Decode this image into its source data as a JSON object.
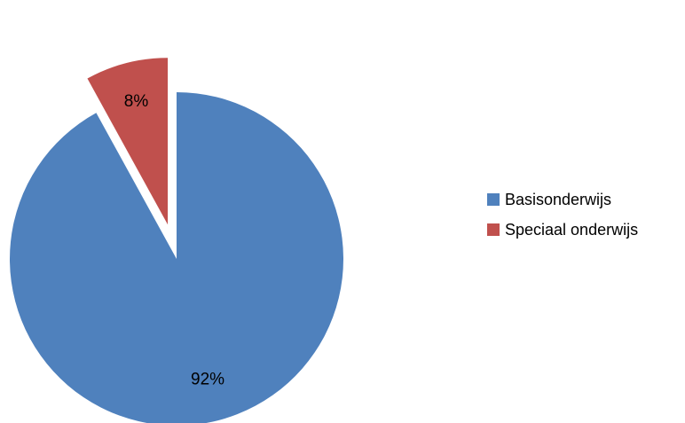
{
  "chart_data": {
    "type": "pie",
    "title": "",
    "categories": [
      "Basisonderwijs",
      "Speciaal onderwijs"
    ],
    "values": [
      92,
      8
    ],
    "labels": [
      "92%",
      "8%"
    ],
    "colors": [
      "#4F81BD",
      "#C0504D"
    ],
    "exploded": [
      false,
      true
    ],
    "legend_position": "right"
  }
}
